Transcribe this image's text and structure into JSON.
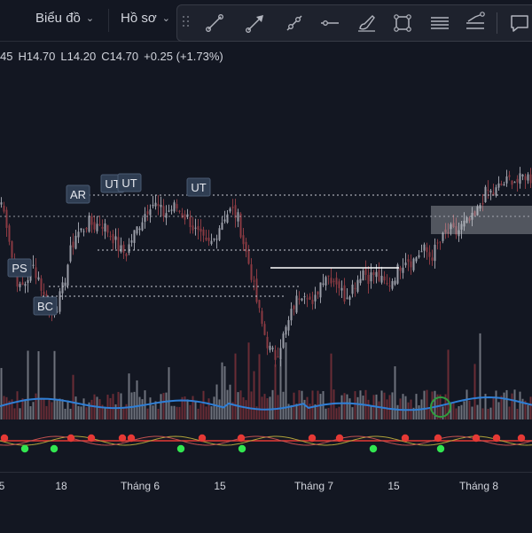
{
  "header": {
    "menu_chart": "Biểu đồ",
    "menu_profile": "Hồ sơ",
    "chevron": "⌄"
  },
  "toolbar": {
    "grip_icon": "grip-icon",
    "tools": [
      {
        "name": "trend-line-icon"
      },
      {
        "name": "arrow-line-icon"
      },
      {
        "name": "ray-line-icon"
      },
      {
        "name": "horizontal-line-icon"
      },
      {
        "name": "brush-icon"
      },
      {
        "name": "rectangle-icon"
      },
      {
        "name": "fib-lines-icon"
      },
      {
        "name": "path-icon"
      },
      {
        "name": "comment-icon"
      }
    ]
  },
  "ohlc": {
    "o_partial": "45",
    "h_label": "H",
    "h_value": "14.70",
    "l_label": "L",
    "l_value": "14.20",
    "c_label": "C",
    "c_value": "14.70",
    "change": "+0.25 (+1.73%)"
  },
  "colors": {
    "background": "#131722",
    "candle_up": "#9b9ea8",
    "candle_down": "#8a3a42",
    "volume_up": "#7f828c",
    "volume_down": "#7a3038",
    "volume_ma": "#2f7fd6",
    "osc_red": "#e53935",
    "osc_green": "#32e650",
    "label_bg": "#2f3d52"
  },
  "chart_data": {
    "type": "candlestick",
    "title": "",
    "xlabel": "",
    "ylabel": "",
    "x_ticks": [
      "5",
      "18",
      "Tháng 6",
      "15",
      "Tháng 7",
      "15",
      "Tháng 8"
    ],
    "close_path": [
      14.9,
      14.3,
      13.2,
      12.7,
      12.9,
      13.3,
      13.0,
      12.4,
      12.1,
      12.3,
      12.8,
      13.6,
      14.1,
      14.2,
      14.4,
      14.3,
      14.4,
      14.2,
      14.0,
      13.7,
      13.6,
      14.0,
      14.3,
      14.6,
      14.9,
      14.8,
      14.6,
      14.7,
      14.8,
      14.6,
      14.5,
      14.2,
      14.0,
      13.8,
      13.9,
      14.3,
      14.6,
      14.7,
      14.5,
      13.8,
      13.2,
      12.4,
      11.7,
      11.2,
      11.0,
      11.4,
      11.8,
      12.3,
      12.6,
      12.7,
      12.2,
      12.8,
      13.1,
      13.0,
      12.9,
      12.5,
      12.7,
      12.9,
      13.2,
      13.0,
      13.1,
      12.9,
      12.8,
      13.0,
      13.3,
      13.5,
      13.4,
      13.6,
      13.7,
      13.5,
      13.8,
      14.0,
      14.2,
      14.1,
      14.3,
      14.4,
      14.5,
      14.9,
      15.2,
      15.1,
      15.3,
      15.4,
      15.5,
      15.4,
      15.6,
      15.5
    ],
    "annotations": [
      {
        "text": "PS"
      },
      {
        "text": "BC"
      },
      {
        "text": "AR"
      },
      {
        "text": "UT"
      },
      {
        "text": "UT"
      },
      {
        "text": "UT"
      }
    ],
    "oscillator_markers": {
      "red_count": 14,
      "green_count": 6
    }
  }
}
